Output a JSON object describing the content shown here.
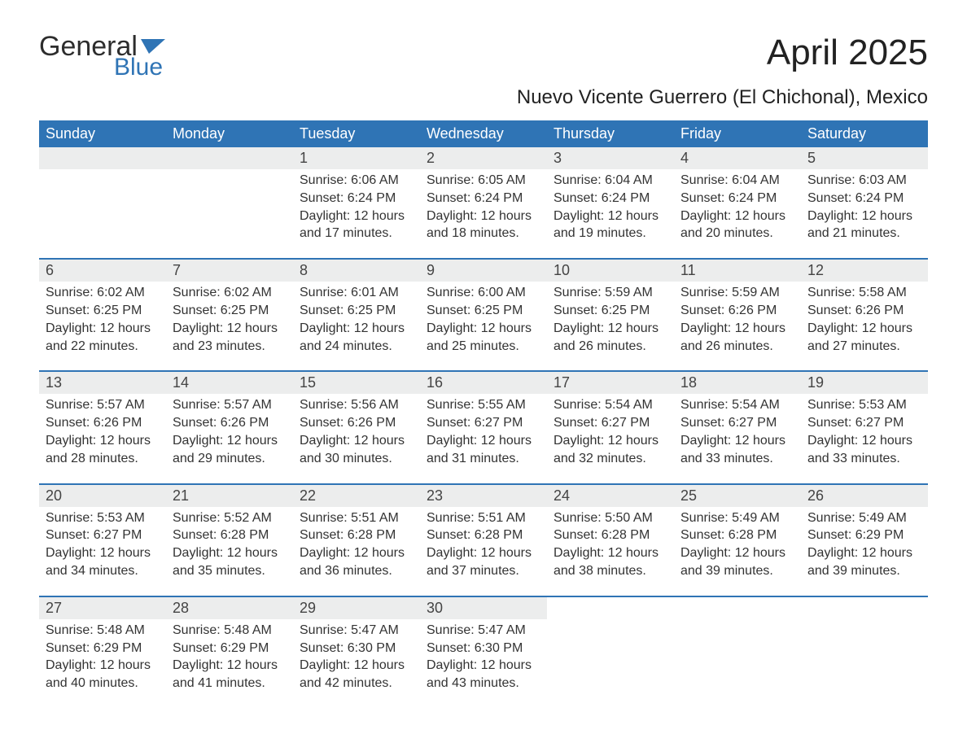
{
  "brand": {
    "word1": "General",
    "word2": "Blue",
    "flag_color": "#2f74b5"
  },
  "title": "April 2025",
  "subtitle": "Nuevo Vicente Guerrero (El Chichonal), Mexico",
  "colors": {
    "header_bg": "#2f74b5",
    "header_fg": "#ffffff",
    "daynum_bg": "#eceded",
    "text": "#333333",
    "week_border": "#2f74b5"
  },
  "weekdays": [
    "Sunday",
    "Monday",
    "Tuesday",
    "Wednesday",
    "Thursday",
    "Friday",
    "Saturday"
  ],
  "weeks": [
    [
      {
        "day": "",
        "sunrise": "",
        "sunset": "",
        "daylight1": "",
        "daylight2": ""
      },
      {
        "day": "",
        "sunrise": "",
        "sunset": "",
        "daylight1": "",
        "daylight2": ""
      },
      {
        "day": "1",
        "sunrise": "Sunrise: 6:06 AM",
        "sunset": "Sunset: 6:24 PM",
        "daylight1": "Daylight: 12 hours",
        "daylight2": "and 17 minutes."
      },
      {
        "day": "2",
        "sunrise": "Sunrise: 6:05 AM",
        "sunset": "Sunset: 6:24 PM",
        "daylight1": "Daylight: 12 hours",
        "daylight2": "and 18 minutes."
      },
      {
        "day": "3",
        "sunrise": "Sunrise: 6:04 AM",
        "sunset": "Sunset: 6:24 PM",
        "daylight1": "Daylight: 12 hours",
        "daylight2": "and 19 minutes."
      },
      {
        "day": "4",
        "sunrise": "Sunrise: 6:04 AM",
        "sunset": "Sunset: 6:24 PM",
        "daylight1": "Daylight: 12 hours",
        "daylight2": "and 20 minutes."
      },
      {
        "day": "5",
        "sunrise": "Sunrise: 6:03 AM",
        "sunset": "Sunset: 6:24 PM",
        "daylight1": "Daylight: 12 hours",
        "daylight2": "and 21 minutes."
      }
    ],
    [
      {
        "day": "6",
        "sunrise": "Sunrise: 6:02 AM",
        "sunset": "Sunset: 6:25 PM",
        "daylight1": "Daylight: 12 hours",
        "daylight2": "and 22 minutes."
      },
      {
        "day": "7",
        "sunrise": "Sunrise: 6:02 AM",
        "sunset": "Sunset: 6:25 PM",
        "daylight1": "Daylight: 12 hours",
        "daylight2": "and 23 minutes."
      },
      {
        "day": "8",
        "sunrise": "Sunrise: 6:01 AM",
        "sunset": "Sunset: 6:25 PM",
        "daylight1": "Daylight: 12 hours",
        "daylight2": "and 24 minutes."
      },
      {
        "day": "9",
        "sunrise": "Sunrise: 6:00 AM",
        "sunset": "Sunset: 6:25 PM",
        "daylight1": "Daylight: 12 hours",
        "daylight2": "and 25 minutes."
      },
      {
        "day": "10",
        "sunrise": "Sunrise: 5:59 AM",
        "sunset": "Sunset: 6:25 PM",
        "daylight1": "Daylight: 12 hours",
        "daylight2": "and 26 minutes."
      },
      {
        "day": "11",
        "sunrise": "Sunrise: 5:59 AM",
        "sunset": "Sunset: 6:26 PM",
        "daylight1": "Daylight: 12 hours",
        "daylight2": "and 26 minutes."
      },
      {
        "day": "12",
        "sunrise": "Sunrise: 5:58 AM",
        "sunset": "Sunset: 6:26 PM",
        "daylight1": "Daylight: 12 hours",
        "daylight2": "and 27 minutes."
      }
    ],
    [
      {
        "day": "13",
        "sunrise": "Sunrise: 5:57 AM",
        "sunset": "Sunset: 6:26 PM",
        "daylight1": "Daylight: 12 hours",
        "daylight2": "and 28 minutes."
      },
      {
        "day": "14",
        "sunrise": "Sunrise: 5:57 AM",
        "sunset": "Sunset: 6:26 PM",
        "daylight1": "Daylight: 12 hours",
        "daylight2": "and 29 minutes."
      },
      {
        "day": "15",
        "sunrise": "Sunrise: 5:56 AM",
        "sunset": "Sunset: 6:26 PM",
        "daylight1": "Daylight: 12 hours",
        "daylight2": "and 30 minutes."
      },
      {
        "day": "16",
        "sunrise": "Sunrise: 5:55 AM",
        "sunset": "Sunset: 6:27 PM",
        "daylight1": "Daylight: 12 hours",
        "daylight2": "and 31 minutes."
      },
      {
        "day": "17",
        "sunrise": "Sunrise: 5:54 AM",
        "sunset": "Sunset: 6:27 PM",
        "daylight1": "Daylight: 12 hours",
        "daylight2": "and 32 minutes."
      },
      {
        "day": "18",
        "sunrise": "Sunrise: 5:54 AM",
        "sunset": "Sunset: 6:27 PM",
        "daylight1": "Daylight: 12 hours",
        "daylight2": "and 33 minutes."
      },
      {
        "day": "19",
        "sunrise": "Sunrise: 5:53 AM",
        "sunset": "Sunset: 6:27 PM",
        "daylight1": "Daylight: 12 hours",
        "daylight2": "and 33 minutes."
      }
    ],
    [
      {
        "day": "20",
        "sunrise": "Sunrise: 5:53 AM",
        "sunset": "Sunset: 6:27 PM",
        "daylight1": "Daylight: 12 hours",
        "daylight2": "and 34 minutes."
      },
      {
        "day": "21",
        "sunrise": "Sunrise: 5:52 AM",
        "sunset": "Sunset: 6:28 PM",
        "daylight1": "Daylight: 12 hours",
        "daylight2": "and 35 minutes."
      },
      {
        "day": "22",
        "sunrise": "Sunrise: 5:51 AM",
        "sunset": "Sunset: 6:28 PM",
        "daylight1": "Daylight: 12 hours",
        "daylight2": "and 36 minutes."
      },
      {
        "day": "23",
        "sunrise": "Sunrise: 5:51 AM",
        "sunset": "Sunset: 6:28 PM",
        "daylight1": "Daylight: 12 hours",
        "daylight2": "and 37 minutes."
      },
      {
        "day": "24",
        "sunrise": "Sunrise: 5:50 AM",
        "sunset": "Sunset: 6:28 PM",
        "daylight1": "Daylight: 12 hours",
        "daylight2": "and 38 minutes."
      },
      {
        "day": "25",
        "sunrise": "Sunrise: 5:49 AM",
        "sunset": "Sunset: 6:28 PM",
        "daylight1": "Daylight: 12 hours",
        "daylight2": "and 39 minutes."
      },
      {
        "day": "26",
        "sunrise": "Sunrise: 5:49 AM",
        "sunset": "Sunset: 6:29 PM",
        "daylight1": "Daylight: 12 hours",
        "daylight2": "and 39 minutes."
      }
    ],
    [
      {
        "day": "27",
        "sunrise": "Sunrise: 5:48 AM",
        "sunset": "Sunset: 6:29 PM",
        "daylight1": "Daylight: 12 hours",
        "daylight2": "and 40 minutes."
      },
      {
        "day": "28",
        "sunrise": "Sunrise: 5:48 AM",
        "sunset": "Sunset: 6:29 PM",
        "daylight1": "Daylight: 12 hours",
        "daylight2": "and 41 minutes."
      },
      {
        "day": "29",
        "sunrise": "Sunrise: 5:47 AM",
        "sunset": "Sunset: 6:30 PM",
        "daylight1": "Daylight: 12 hours",
        "daylight2": "and 42 minutes."
      },
      {
        "day": "30",
        "sunrise": "Sunrise: 5:47 AM",
        "sunset": "Sunset: 6:30 PM",
        "daylight1": "Daylight: 12 hours",
        "daylight2": "and 43 minutes."
      },
      {
        "day": "",
        "sunrise": "",
        "sunset": "",
        "daylight1": "",
        "daylight2": ""
      },
      {
        "day": "",
        "sunrise": "",
        "sunset": "",
        "daylight1": "",
        "daylight2": ""
      },
      {
        "day": "",
        "sunrise": "",
        "sunset": "",
        "daylight1": "",
        "daylight2": ""
      }
    ]
  ]
}
